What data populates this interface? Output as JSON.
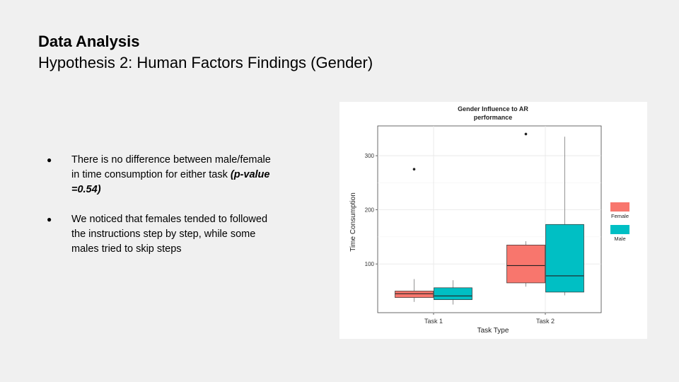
{
  "slide": {
    "title": "Data Analysis",
    "subtitle": "Hypothesis 2: Human Factors Findings (Gender)",
    "bullets": [
      {
        "text": "There is no difference between male/female in time consumption for either task ",
        "emphasis": "(p-value =0.54)"
      },
      {
        "text": "We noticed that females tended to followed the instructions step by step, while some males tried to skip steps",
        "emphasis": ""
      }
    ],
    "bullet_glyph": "●"
  },
  "chart_data": {
    "type": "boxplot",
    "title_lines": [
      "Gender Influence to AR",
      "performance"
    ],
    "xlabel": "Task Type",
    "ylabel": "Time Consumption",
    "categories": [
      "Task 1",
      "Task 2"
    ],
    "y_ticks": [
      100,
      200,
      300
    ],
    "ylim": [
      10,
      355
    ],
    "grid": true,
    "legend_position": "right",
    "series": [
      {
        "name": "Female",
        "color": "#F8766D",
        "boxes": [
          {
            "whisker_low": 30,
            "q1": 38,
            "median": 45,
            "q3": 50,
            "whisker_high": 72,
            "outliers": [
              275
            ]
          },
          {
            "whisker_low": 58,
            "q1": 65,
            "median": 97,
            "q3": 135,
            "whisker_high": 142,
            "outliers": [
              340
            ]
          }
        ]
      },
      {
        "name": "Male",
        "color": "#00BFC4",
        "boxes": [
          {
            "whisker_low": 25,
            "q1": 34,
            "median": 41,
            "q3": 56,
            "whisker_high": 70,
            "outliers": []
          },
          {
            "whisker_low": 42,
            "q1": 48,
            "median": 78,
            "q3": 173,
            "whisker_high": 335,
            "outliers": []
          }
        ]
      }
    ]
  }
}
